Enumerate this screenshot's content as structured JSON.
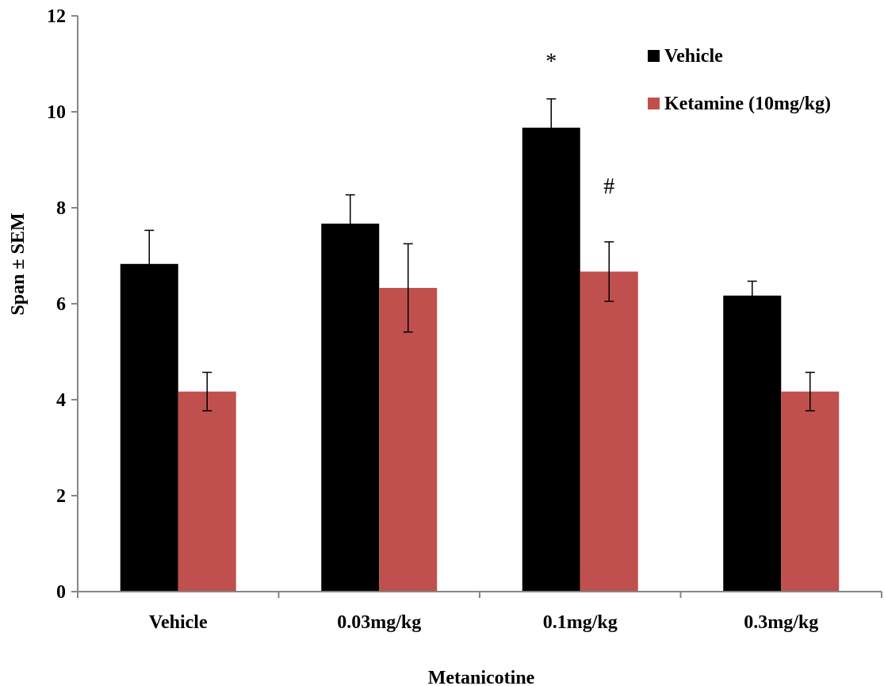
{
  "chart_data": {
    "type": "bar",
    "title": "",
    "xlabel": "Metanicotine",
    "ylabel": "Span ± SEM",
    "ylim": [
      0,
      12
    ],
    "yticks": [
      0,
      2,
      4,
      6,
      8,
      10,
      12
    ],
    "grid": false,
    "legend_position": "top-right",
    "categories": [
      "Vehicle",
      "0.03mg/kg",
      "0.1mg/kg",
      "0.3mg/kg"
    ],
    "series": [
      {
        "name": "Vehicle",
        "color": "#000000",
        "values": [
          6.83,
          7.67,
          9.67,
          6.17
        ],
        "errors": [
          0.7,
          0.6,
          0.6,
          0.3
        ]
      },
      {
        "name": "Ketamine (10mg/kg)",
        "color": "#c0504d",
        "values": [
          4.17,
          6.33,
          6.67,
          4.17
        ],
        "errors": [
          0.4,
          0.92,
          0.62,
          0.4
        ]
      }
    ],
    "annotations": [
      {
        "text": "*",
        "category_index": 2,
        "series_index": 0,
        "y": 10.9
      },
      {
        "text": "#",
        "category_index": 2,
        "series_index": 1,
        "y": 8.3
      }
    ]
  }
}
